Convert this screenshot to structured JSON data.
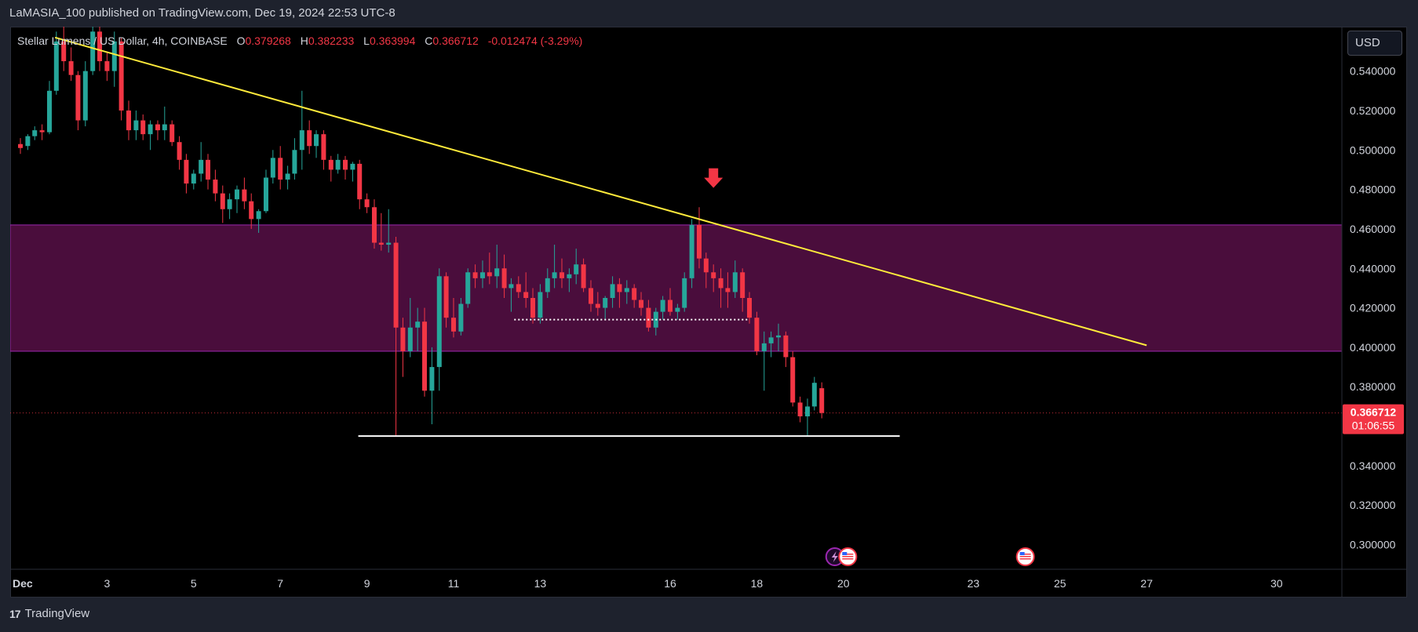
{
  "header": {
    "attribution": "LaMASIA_100 published on TradingView.com, Dec 19, 2024 22:53 UTC-8"
  },
  "legend": {
    "symbol": "Stellar Lumens / US Dollar, 4h, COINBASE",
    "o_label": "O",
    "o_value": "0.379268",
    "h_label": "H",
    "h_value": "0.382233",
    "l_label": "L",
    "l_value": "0.363994",
    "c_label": "C",
    "c_value": "0.366712",
    "change": "-0.012474 (-3.29%)"
  },
  "currency": "USD",
  "footer": {
    "brand": "TradingView",
    "logo_text": "17"
  },
  "colors": {
    "up": "#26a69a",
    "down": "#f23645",
    "trendline": "#ffeb3b",
    "zone_fill": "#4a0d3c",
    "zone_border": "#9c27b0",
    "support": "#ffffff",
    "price_tag": "#f23645",
    "arrow": "#f23645"
  },
  "chart_data": {
    "type": "candlestick",
    "title": "Stellar Lumens / US Dollar, 4h, COINBASE",
    "timeframe": "4h",
    "ylim": [
      0.2875,
      0.5625
    ],
    "y_ticks": [
      0.54,
      0.52,
      0.5,
      0.48,
      0.46,
      0.44,
      0.42,
      0.4,
      0.38,
      0.34,
      0.32,
      0.3
    ],
    "y_tick_labels": [
      "0.540000",
      "0.520000",
      "0.500000",
      "0.480000",
      "0.460000",
      "0.440000",
      "0.420000",
      "0.400000",
      "0.380000",
      "0.340000",
      "0.320000",
      "0.300000"
    ],
    "x_ticks": [
      {
        "label": "Dec",
        "day": 1
      },
      {
        "label": "3",
        "day": 3
      },
      {
        "label": "5",
        "day": 5
      },
      {
        "label": "7",
        "day": 7
      },
      {
        "label": "9",
        "day": 9
      },
      {
        "label": "11",
        "day": 11
      },
      {
        "label": "13",
        "day": 13
      },
      {
        "label": "16",
        "day": 16
      },
      {
        "label": "18",
        "day": 18
      },
      {
        "label": "20",
        "day": 20
      },
      {
        "label": "23",
        "day": 23
      },
      {
        "label": "25",
        "day": 25
      },
      {
        "label": "27",
        "day": 27
      },
      {
        "label": "30",
        "day": 30
      }
    ],
    "last_price": 0.366712,
    "last_price_label": "0.366712",
    "countdown": "01:06:55",
    "resistance_zone": [
      0.398,
      0.462
    ],
    "support_line": {
      "price": 0.355,
      "from_day": 8.8,
      "to_day": 21.3
    },
    "range_low_dotted": {
      "price": 0.414,
      "from_day": 12.4,
      "to_day": 17.8
    },
    "trendline": [
      {
        "day": 1.8,
        "price": 0.557
      },
      {
        "day": 27.0,
        "price": 0.401
      }
    ],
    "signal_arrow": {
      "day": 17.0,
      "price": 0.48,
      "direction": "down"
    },
    "event_markers": [
      {
        "day": 19.8,
        "kind": "flash"
      },
      {
        "day": 20.1,
        "kind": "us-flag"
      },
      {
        "day": 24.2,
        "kind": "us-flag"
      }
    ],
    "candles": [
      [
        1.0,
        0.503,
        0.506,
        0.498,
        0.501
      ],
      [
        1.17,
        0.502,
        0.508,
        0.5,
        0.507
      ],
      [
        1.33,
        0.507,
        0.512,
        0.505,
        0.51
      ],
      [
        1.5,
        0.51,
        0.513,
        0.505,
        0.509
      ],
      [
        1.67,
        0.509,
        0.535,
        0.508,
        0.53
      ],
      [
        1.83,
        0.53,
        0.56,
        0.528,
        0.555
      ],
      [
        2.0,
        0.555,
        0.565,
        0.54,
        0.545
      ],
      [
        2.17,
        0.545,
        0.552,
        0.535,
        0.538
      ],
      [
        2.33,
        0.538,
        0.54,
        0.51,
        0.515
      ],
      [
        2.5,
        0.515,
        0.545,
        0.512,
        0.54
      ],
      [
        2.67,
        0.54,
        0.565,
        0.538,
        0.56
      ],
      [
        2.83,
        0.56,
        0.563,
        0.54,
        0.545
      ],
      [
        3.0,
        0.545,
        0.55,
        0.535,
        0.54
      ],
      [
        3.17,
        0.54,
        0.56,
        0.532,
        0.555
      ],
      [
        3.33,
        0.555,
        0.557,
        0.515,
        0.52
      ],
      [
        3.5,
        0.52,
        0.525,
        0.505,
        0.51
      ],
      [
        3.67,
        0.51,
        0.52,
        0.505,
        0.515
      ],
      [
        3.83,
        0.515,
        0.518,
        0.505,
        0.508
      ],
      [
        4.0,
        0.508,
        0.515,
        0.5,
        0.513
      ],
      [
        4.17,
        0.513,
        0.515,
        0.505,
        0.51
      ],
      [
        4.33,
        0.51,
        0.522,
        0.505,
        0.513
      ],
      [
        4.5,
        0.513,
        0.515,
        0.502,
        0.504
      ],
      [
        4.67,
        0.504,
        0.507,
        0.49,
        0.495
      ],
      [
        4.83,
        0.495,
        0.498,
        0.478,
        0.483
      ],
      [
        5.0,
        0.483,
        0.49,
        0.48,
        0.488
      ],
      [
        5.17,
        0.488,
        0.504,
        0.484,
        0.495
      ],
      [
        5.33,
        0.495,
        0.498,
        0.48,
        0.485
      ],
      [
        5.5,
        0.485,
        0.49,
        0.474,
        0.478
      ],
      [
        5.67,
        0.478,
        0.482,
        0.463,
        0.47
      ],
      [
        5.83,
        0.47,
        0.478,
        0.465,
        0.475
      ],
      [
        6.0,
        0.475,
        0.482,
        0.468,
        0.48
      ],
      [
        6.17,
        0.48,
        0.486,
        0.47,
        0.474
      ],
      [
        6.33,
        0.474,
        0.478,
        0.46,
        0.465
      ],
      [
        6.5,
        0.465,
        0.47,
        0.458,
        0.469
      ],
      [
        6.67,
        0.469,
        0.49,
        0.468,
        0.486
      ],
      [
        6.83,
        0.486,
        0.5,
        0.483,
        0.496
      ],
      [
        7.0,
        0.496,
        0.502,
        0.48,
        0.485
      ],
      [
        7.17,
        0.485,
        0.492,
        0.48,
        0.488
      ],
      [
        7.33,
        0.488,
        0.506,
        0.485,
        0.5
      ],
      [
        7.5,
        0.5,
        0.53,
        0.49,
        0.51
      ],
      [
        7.67,
        0.51,
        0.515,
        0.498,
        0.502
      ],
      [
        7.83,
        0.502,
        0.51,
        0.496,
        0.508
      ],
      [
        8.0,
        0.508,
        0.51,
        0.49,
        0.495
      ],
      [
        8.17,
        0.495,
        0.497,
        0.484,
        0.49
      ],
      [
        8.33,
        0.49,
        0.498,
        0.488,
        0.495
      ],
      [
        8.5,
        0.495,
        0.497,
        0.485,
        0.49
      ],
      [
        8.67,
        0.49,
        0.494,
        0.484,
        0.493
      ],
      [
        8.83,
        0.493,
        0.495,
        0.47,
        0.475
      ],
      [
        9.0,
        0.475,
        0.478,
        0.468,
        0.471
      ],
      [
        9.17,
        0.471,
        0.475,
        0.45,
        0.453
      ],
      [
        9.33,
        0.453,
        0.468,
        0.449,
        0.452
      ],
      [
        9.5,
        0.452,
        0.47,
        0.448,
        0.453
      ],
      [
        9.67,
        0.453,
        0.456,
        0.355,
        0.41
      ],
      [
        9.83,
        0.41,
        0.415,
        0.385,
        0.398
      ],
      [
        10.0,
        0.398,
        0.425,
        0.395,
        0.41
      ],
      [
        10.17,
        0.41,
        0.42,
        0.398,
        0.413
      ],
      [
        10.33,
        0.413,
        0.42,
        0.375,
        0.378
      ],
      [
        10.5,
        0.378,
        0.4,
        0.361,
        0.39
      ],
      [
        10.67,
        0.39,
        0.44,
        0.378,
        0.436
      ],
      [
        10.83,
        0.436,
        0.438,
        0.41,
        0.415
      ],
      [
        11.0,
        0.415,
        0.425,
        0.405,
        0.408
      ],
      [
        11.17,
        0.408,
        0.425,
        0.406,
        0.422
      ],
      [
        11.33,
        0.422,
        0.44,
        0.42,
        0.438
      ],
      [
        11.5,
        0.438,
        0.442,
        0.43,
        0.435
      ],
      [
        11.67,
        0.435,
        0.444,
        0.43,
        0.438
      ],
      [
        11.83,
        0.438,
        0.448,
        0.432,
        0.436
      ],
      [
        12.0,
        0.436,
        0.452,
        0.43,
        0.44
      ],
      [
        12.17,
        0.44,
        0.447,
        0.425,
        0.43
      ],
      [
        12.33,
        0.43,
        0.435,
        0.418,
        0.432
      ],
      [
        12.5,
        0.432,
        0.436,
        0.425,
        0.428
      ],
      [
        12.67,
        0.428,
        0.438,
        0.42,
        0.425
      ],
      [
        12.83,
        0.425,
        0.43,
        0.412,
        0.415
      ],
      [
        13.0,
        0.415,
        0.432,
        0.412,
        0.428
      ],
      [
        13.17,
        0.428,
        0.44,
        0.425,
        0.435
      ],
      [
        13.33,
        0.435,
        0.452,
        0.43,
        0.438
      ],
      [
        13.5,
        0.438,
        0.445,
        0.43,
        0.435
      ],
      [
        13.67,
        0.435,
        0.44,
        0.428,
        0.437
      ],
      [
        13.83,
        0.437,
        0.45,
        0.432,
        0.442
      ],
      [
        14.0,
        0.442,
        0.445,
        0.428,
        0.43
      ],
      [
        14.17,
        0.43,
        0.434,
        0.418,
        0.422
      ],
      [
        14.33,
        0.422,
        0.428,
        0.416,
        0.42
      ],
      [
        14.5,
        0.42,
        0.426,
        0.414,
        0.425
      ],
      [
        14.67,
        0.425,
        0.436,
        0.42,
        0.432
      ],
      [
        14.83,
        0.432,
        0.435,
        0.42,
        0.428
      ],
      [
        15.0,
        0.428,
        0.434,
        0.422,
        0.43
      ],
      [
        15.17,
        0.43,
        0.432,
        0.42,
        0.424
      ],
      [
        15.33,
        0.424,
        0.428,
        0.416,
        0.42
      ],
      [
        15.5,
        0.42,
        0.424,
        0.408,
        0.41
      ],
      [
        15.67,
        0.41,
        0.42,
        0.406,
        0.418
      ],
      [
        15.83,
        0.418,
        0.426,
        0.414,
        0.424
      ],
      [
        16.0,
        0.424,
        0.43,
        0.416,
        0.418
      ],
      [
        16.17,
        0.418,
        0.422,
        0.414,
        0.42
      ],
      [
        16.33,
        0.42,
        0.438,
        0.418,
        0.435
      ],
      [
        16.5,
        0.435,
        0.465,
        0.43,
        0.462
      ],
      [
        16.67,
        0.462,
        0.471,
        0.44,
        0.445
      ],
      [
        16.83,
        0.445,
        0.448,
        0.43,
        0.438
      ],
      [
        17.0,
        0.438,
        0.442,
        0.428,
        0.435
      ],
      [
        17.17,
        0.435,
        0.44,
        0.42,
        0.43
      ],
      [
        17.33,
        0.43,
        0.438,
        0.42,
        0.428
      ],
      [
        17.5,
        0.428,
        0.444,
        0.425,
        0.438
      ],
      [
        17.67,
        0.438,
        0.44,
        0.418,
        0.425
      ],
      [
        17.83,
        0.425,
        0.428,
        0.412,
        0.415
      ],
      [
        18.0,
        0.415,
        0.418,
        0.396,
        0.398
      ],
      [
        18.17,
        0.398,
        0.408,
        0.378,
        0.402
      ],
      [
        18.33,
        0.402,
        0.408,
        0.395,
        0.405
      ],
      [
        18.5,
        0.405,
        0.412,
        0.398,
        0.406
      ],
      [
        18.67,
        0.406,
        0.408,
        0.39,
        0.395
      ],
      [
        18.83,
        0.395,
        0.398,
        0.37,
        0.372
      ],
      [
        19.0,
        0.372,
        0.375,
        0.362,
        0.365
      ],
      [
        19.17,
        0.365,
        0.374,
        0.355,
        0.37
      ],
      [
        19.33,
        0.37,
        0.385,
        0.368,
        0.382
      ],
      [
        19.5,
        0.379268,
        0.382233,
        0.363994,
        0.366712
      ]
    ]
  }
}
